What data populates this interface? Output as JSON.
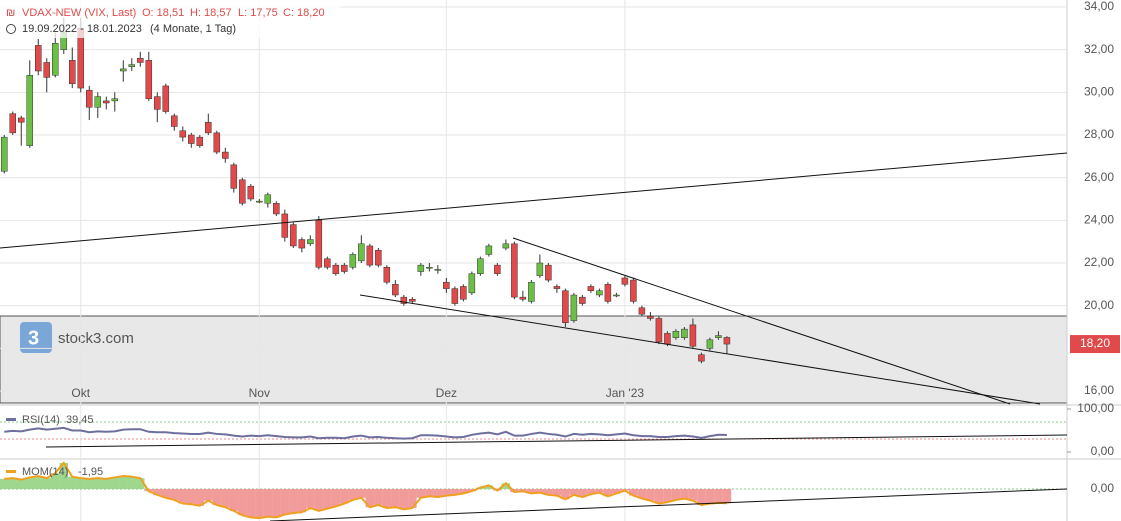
{
  "header": {
    "instrument": "VDAX-NEW (VIX, Last)",
    "open": "O: 18,51",
    "high": "H: 18,57",
    "low": "L: 17,75",
    "close": "C: 18,20",
    "range": "19.09.2022 - 18.01.2023",
    "period": "(4 Monate, 1 Tag)"
  },
  "watermark": "stock3.com",
  "chart_data": {
    "type": "candlestick",
    "candles": [
      [
        26.3,
        28.0,
        26.2,
        27.9
      ],
      [
        29.0,
        29.1,
        28.0,
        28.1
      ],
      [
        28.8,
        28.9,
        27.5,
        28.6
      ],
      [
        27.5,
        31.5,
        27.4,
        30.8
      ],
      [
        32.2,
        32.5,
        30.8,
        31.0
      ],
      [
        31.4,
        31.6,
        30.0,
        30.7
      ],
      [
        30.8,
        32.8,
        30.7,
        32.3
      ],
      [
        32.0,
        33.5,
        31.8,
        32.8
      ],
      [
        31.5,
        32.1,
        30.2,
        30.4
      ],
      [
        33.0,
        33.5,
        30.0,
        30.2
      ],
      [
        30.1,
        30.3,
        28.7,
        29.3
      ],
      [
        29.3,
        30.0,
        28.8,
        29.8
      ],
      [
        29.6,
        29.8,
        29.2,
        29.5
      ],
      [
        29.6,
        30.0,
        29.1,
        29.7
      ],
      [
        31.0,
        31.5,
        30.5,
        31.1
      ],
      [
        31.2,
        31.6,
        31.0,
        31.3
      ],
      [
        31.6,
        31.9,
        31.2,
        31.4
      ],
      [
        31.5,
        31.9,
        29.6,
        29.7
      ],
      [
        29.8,
        30.0,
        28.6,
        29.2
      ],
      [
        30.3,
        30.4,
        29.0,
        29.1
      ],
      [
        28.9,
        29.0,
        28.2,
        28.4
      ],
      [
        28.2,
        28.4,
        27.7,
        27.9
      ],
      [
        28.0,
        28.1,
        27.4,
        27.6
      ],
      [
        27.9,
        28.0,
        27.4,
        27.5
      ],
      [
        28.6,
        29.0,
        28.0,
        28.1
      ],
      [
        28.1,
        28.2,
        27.1,
        27.2
      ],
      [
        27.2,
        27.4,
        26.7,
        26.9
      ],
      [
        26.6,
        26.7,
        25.3,
        25.5
      ],
      [
        25.9,
        26.0,
        24.7,
        24.8
      ],
      [
        25.6,
        25.7,
        24.9,
        25.0
      ],
      [
        24.9,
        25.0,
        24.8,
        24.9
      ],
      [
        24.8,
        25.3,
        24.6,
        25.2
      ],
      [
        24.8,
        24.9,
        24.2,
        24.3
      ],
      [
        24.3,
        24.5,
        23.0,
        23.2
      ],
      [
        23.8,
        23.9,
        22.7,
        22.8
      ],
      [
        23.1,
        23.2,
        22.5,
        22.7
      ],
      [
        22.9,
        23.3,
        22.8,
        23.1
      ],
      [
        24.0,
        24.2,
        21.7,
        21.8
      ],
      [
        22.2,
        22.3,
        21.7,
        21.8
      ],
      [
        21.9,
        22.0,
        21.4,
        21.5
      ],
      [
        21.9,
        22.0,
        21.5,
        21.6
      ],
      [
        21.8,
        22.5,
        21.7,
        22.4
      ],
      [
        22.1,
        23.3,
        22.0,
        22.9
      ],
      [
        22.8,
        22.9,
        21.8,
        21.9
      ],
      [
        22.6,
        22.7,
        21.8,
        21.9
      ],
      [
        21.8,
        21.9,
        21.0,
        21.1
      ],
      [
        21.0,
        21.2,
        20.4,
        20.5
      ],
      [
        20.4,
        20.5,
        20.0,
        20.1
      ],
      [
        20.3,
        20.4,
        20.1,
        20.2
      ],
      [
        21.6,
        22.0,
        21.4,
        21.9
      ],
      [
        21.8,
        22.0,
        21.6,
        21.8
      ],
      [
        21.7,
        21.9,
        21.5,
        21.7
      ],
      [
        21.1,
        21.3,
        20.6,
        20.8
      ],
      [
        20.8,
        20.9,
        20.0,
        20.1
      ],
      [
        20.9,
        21.0,
        20.2,
        20.3
      ],
      [
        20.6,
        21.6,
        20.5,
        21.5
      ],
      [
        21.5,
        22.3,
        21.4,
        22.2
      ],
      [
        22.4,
        22.9,
        22.3,
        22.8
      ],
      [
        21.9,
        22.0,
        21.4,
        21.5
      ],
      [
        22.7,
        23.1,
        22.6,
        22.9
      ],
      [
        22.9,
        23.0,
        20.3,
        20.4
      ],
      [
        20.4,
        20.7,
        20.2,
        20.3
      ],
      [
        20.2,
        21.2,
        20.1,
        21.1
      ],
      [
        21.4,
        22.4,
        21.3,
        22.0
      ],
      [
        21.9,
        22.0,
        21.1,
        21.2
      ],
      [
        20.9,
        21.0,
        20.6,
        20.8
      ],
      [
        20.7,
        20.8,
        19.0,
        19.2
      ],
      [
        19.3,
        20.6,
        19.2,
        20.5
      ],
      [
        20.4,
        20.5,
        20.0,
        20.1
      ],
      [
        20.9,
        21.0,
        20.6,
        20.7
      ],
      [
        20.5,
        20.8,
        20.4,
        20.7
      ],
      [
        21.0,
        21.1,
        20.1,
        20.2
      ],
      [
        20.5,
        20.6,
        20.4,
        20.5
      ],
      [
        21.3,
        21.4,
        20.9,
        21.0
      ],
      [
        21.2,
        21.3,
        20.1,
        20.2
      ],
      [
        19.9,
        20.0,
        19.5,
        19.6
      ],
      [
        19.5,
        19.7,
        19.3,
        19.4
      ],
      [
        19.4,
        19.5,
        18.2,
        18.3
      ],
      [
        18.7,
        18.8,
        18.1,
        18.2
      ],
      [
        18.5,
        18.9,
        18.4,
        18.8
      ],
      [
        18.5,
        19.0,
        18.4,
        18.9
      ],
      [
        19.1,
        19.4,
        18.0,
        18.1
      ],
      [
        17.7,
        17.8,
        17.3,
        17.4
      ],
      [
        18.0,
        18.5,
        17.9,
        18.4
      ],
      [
        18.5,
        18.8,
        18.4,
        18.6
      ],
      [
        18.51,
        18.57,
        17.75,
        18.2
      ]
    ],
    "up_color": "#6cbf45",
    "down_color": "#e04a4a",
    "xticks": [
      {
        "value": 9,
        "label": "Okt"
      },
      {
        "value": 30,
        "label": "Nov"
      },
      {
        "value": 52,
        "label": "Dez"
      },
      {
        "value": 73,
        "label": "Jan '23"
      }
    ],
    "xlim": [
      -0.5,
      125
    ],
    "ylim": [
      16,
      34
    ],
    "yticks": [
      {
        "value": 16,
        "label": "16,00"
      },
      {
        "value": 18,
        "label": "18,00"
      },
      {
        "value": 20,
        "label": "20,00"
      },
      {
        "value": 22,
        "label": "22,00"
      },
      {
        "value": 24,
        "label": "24,00"
      },
      {
        "value": 26,
        "label": "26,00"
      },
      {
        "value": 28,
        "label": "28,00"
      },
      {
        "value": 30,
        "label": "30,00"
      },
      {
        "value": 32,
        "label": "32,00"
      },
      {
        "value": 34,
        "label": "34,00"
      }
    ],
    "last": {
      "value": 18.2,
      "label": "18,20"
    },
    "grid": true,
    "rsi": {
      "name": "RSI(14)",
      "last_label": "39,45",
      "color": "#6e6e9e",
      "ylim": [
        0,
        100
      ],
      "yticks": [
        {
          "value": 0,
          "label": "0,00"
        },
        {
          "value": 100,
          "label": "100,00"
        }
      ],
      "values": [
        47,
        49,
        48,
        52,
        55,
        52,
        54,
        56,
        50,
        50,
        46,
        48,
        47,
        48,
        52,
        53,
        53,
        47,
        46,
        46,
        44,
        43,
        42,
        42,
        45,
        42,
        41,
        38,
        36,
        38,
        37,
        39,
        37,
        35,
        34,
        34,
        36,
        32,
        33,
        33,
        32,
        36,
        38,
        34,
        35,
        33,
        32,
        31,
        32,
        39,
        39,
        38,
        36,
        34,
        35,
        40,
        43,
        45,
        41,
        47,
        38,
        38,
        42,
        45,
        42,
        40,
        36,
        42,
        40,
        42,
        41,
        39,
        41,
        43,
        39,
        37,
        37,
        35,
        35,
        37,
        38,
        36,
        33,
        37,
        40,
        39.45
      ]
    },
    "mom": {
      "name": "MOM(14)",
      "last_label": "-1,95",
      "color": "#f0a020",
      "ylim": [
        -4.4,
        4
      ],
      "yticks": [
        {
          "value": 0,
          "label": "0,00"
        }
      ],
      "values": [
        1.4,
        1.5,
        1.3,
        1.6,
        1.8,
        1.5,
        2.2,
        3.6,
        1.7,
        1.5,
        1.4,
        1.5,
        1.4,
        1.6,
        1.8,
        1.7,
        1.5,
        -0.3,
        -0.8,
        -1.2,
        -1.5,
        -2.0,
        -2.1,
        -2.3,
        -1.6,
        -2.2,
        -2.5,
        -3.0,
        -3.6,
        -3.9,
        -4.0,
        -3.8,
        -3.9,
        -3.5,
        -3.3,
        -3.2,
        -2.6,
        -3.0,
        -2.7,
        -2.4,
        -2.0,
        -1.5,
        -1.2,
        -2.5,
        -2.2,
        -2.6,
        -2.5,
        -2.8,
        -2.6,
        -1.2,
        -1.0,
        -1.1,
        -0.9,
        -0.8,
        -0.6,
        -0.3,
        0.2,
        0.5,
        -0.2,
        0.8,
        -0.4,
        -0.3,
        -0.6,
        -0.5,
        -0.8,
        -0.9,
        -1.4,
        -0.8,
        -1.1,
        -0.7,
        -0.5,
        -1.0,
        -0.6,
        -0.2,
        -0.9,
        -1.3,
        -1.6,
        -2.0,
        -1.8,
        -1.5,
        -1.3,
        -1.6,
        -2.2,
        -2.0,
        -1.9,
        -1.95
      ]
    }
  }
}
